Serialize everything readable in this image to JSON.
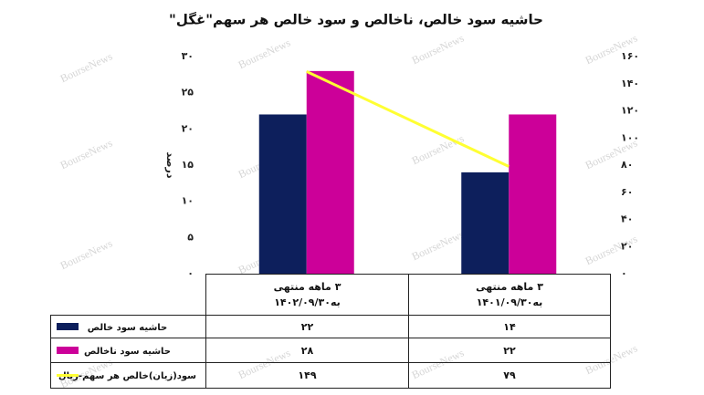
{
  "chart_data": {
    "type": "bar",
    "title": "حاشیه سود خالص، ناخالص و سود خالص هر سهم\"غگل\"",
    "y_label": "درصد",
    "watermark": "BourseNews",
    "categories": [
      "۳ ماهه منتهی\nبه۱۴۰۲/۰۹/۳۰",
      "۳ ماهه منتهی\nبه۱۴۰۱/۰۹/۳۰"
    ],
    "series": [
      {
        "name": "حاشیه سود خالص",
        "color": "#0d1f5c",
        "type": "bar",
        "values": [
          22,
          14
        ],
        "value_labels": [
          "۲۲",
          "۱۴"
        ]
      },
      {
        "name": "حاشیه سود ناخالص",
        "color": "#cc0099",
        "type": "bar",
        "values": [
          28,
          22
        ],
        "value_labels": [
          "۲۸",
          "۲۲"
        ]
      },
      {
        "name": "سود(زیان)خالص هر سهم-ریال",
        "color": "#ffff33",
        "type": "line",
        "axis": "y2",
        "values": [
          149,
          79
        ],
        "value_labels": [
          "۱۴۹",
          "۷۹"
        ]
      }
    ],
    "ylim": [
      0,
      30
    ],
    "yticks": [
      {
        "value": 0,
        "label": "۰"
      },
      {
        "value": 5,
        "label": "۵"
      },
      {
        "value": 10,
        "label": "۱۰"
      },
      {
        "value": 15,
        "label": "۱۵"
      },
      {
        "value": 20,
        "label": "۲۰"
      },
      {
        "value": 25,
        "label": "۲۵"
      },
      {
        "value": 30,
        "label": "۳۰"
      }
    ],
    "y2lim": [
      0,
      160
    ],
    "y2ticks": [
      {
        "value": 0,
        "label": "۰"
      },
      {
        "value": 20,
        "label": "۲۰"
      },
      {
        "value": 40,
        "label": "۴۰"
      },
      {
        "value": 60,
        "label": "۶۰"
      },
      {
        "value": 80,
        "label": "۸۰"
      },
      {
        "value": 100,
        "label": "۱۰۰"
      },
      {
        "value": 120,
        "label": "۱۲۰"
      },
      {
        "value": 140,
        "label": "۱۴۰"
      },
      {
        "value": 160,
        "label": "۱۶۰"
      }
    ],
    "grid": false
  }
}
